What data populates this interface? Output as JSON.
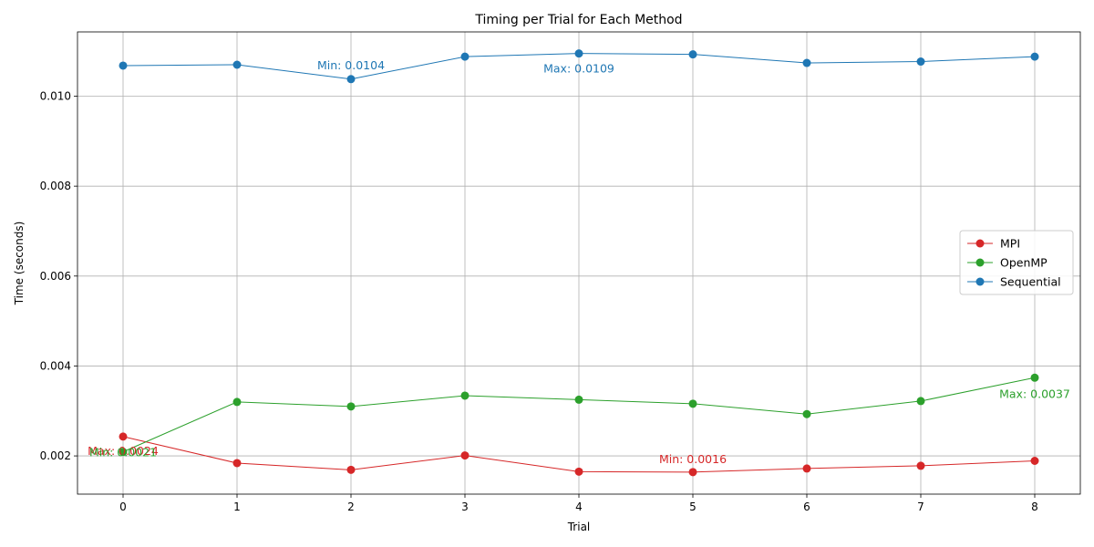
{
  "chart_data": {
    "type": "line",
    "title": "Timing per Trial for Each Method",
    "xlabel": "Trial",
    "ylabel": "Time (seconds)",
    "x": [
      0,
      1,
      2,
      3,
      4,
      5,
      6,
      7,
      8
    ],
    "xlim": [
      -0.4,
      8.4
    ],
    "ylim": [
      0.00115,
      0.01143
    ],
    "xticks": [
      "0",
      "1",
      "2",
      "3",
      "4",
      "5",
      "6",
      "7",
      "8"
    ],
    "yticks": [
      0.002,
      0.004,
      0.006,
      0.008,
      0.01
    ],
    "ytick_labels": [
      "0.002",
      "0.004",
      "0.006",
      "0.008",
      "0.010"
    ],
    "grid": true,
    "legend_position": "center-right",
    "series": [
      {
        "name": "MPI",
        "color": "#d62728",
        "values": [
          0.00243,
          0.00184,
          0.00169,
          0.00201,
          0.00165,
          0.00164,
          0.00172,
          0.00178,
          0.00189
        ]
      },
      {
        "name": "OpenMP",
        "color": "#2ca02c",
        "values": [
          0.00209,
          0.0032,
          0.0031,
          0.00334,
          0.00325,
          0.00316,
          0.00293,
          0.00322,
          0.00374
        ]
      },
      {
        "name": "Sequential",
        "color": "#1f77b4",
        "values": [
          0.01068,
          0.0107,
          0.01038,
          0.01088,
          0.01095,
          0.01093,
          0.01074,
          0.01077,
          0.01088
        ]
      }
    ],
    "annotations": [
      {
        "text": "Min: 0.0016",
        "series": "MPI",
        "x": 5,
        "y": 0.00164
      },
      {
        "text": "Max: 0.0024",
        "series": "MPI",
        "x": 0,
        "y": 0.00243
      },
      {
        "text": "Min: 0.0021",
        "series": "OpenMP",
        "x": 0,
        "y": 0.00209
      },
      {
        "text": "Max: 0.0037",
        "series": "OpenMP",
        "x": 8,
        "y": 0.00374
      },
      {
        "text": "Min: 0.0104",
        "series": "Sequential",
        "x": 2,
        "y": 0.01038
      },
      {
        "text": "Max: 0.0109",
        "series": "Sequential",
        "x": 4,
        "y": 0.01095
      }
    ]
  }
}
